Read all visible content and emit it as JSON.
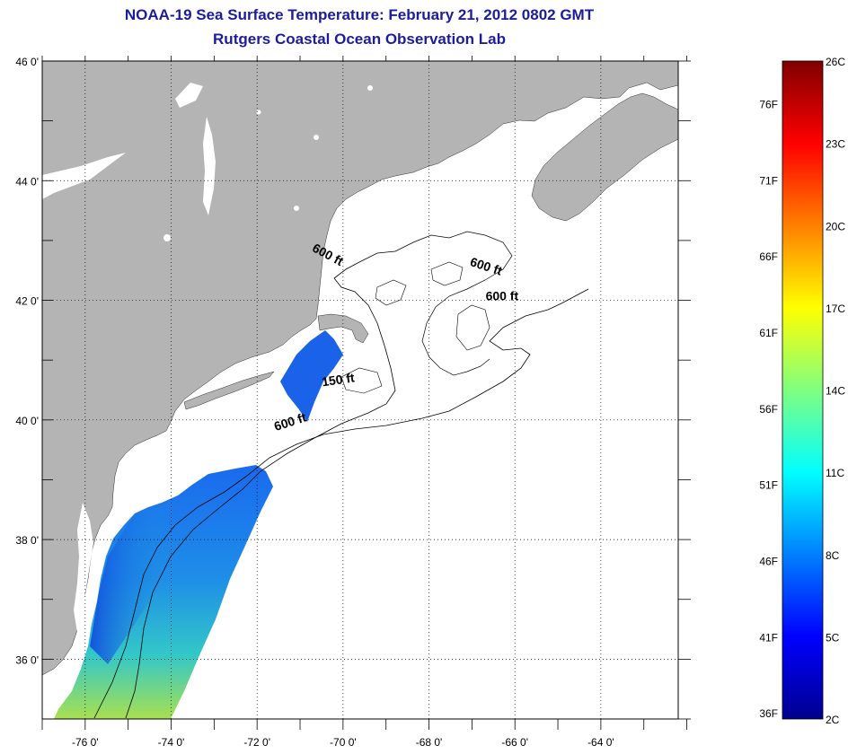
{
  "title": "NOAA-19 Sea Surface Temperature:  February 21, 2012 0802 GMT",
  "subtitle": "Rutgers Coastal Ocean Observation Lab",
  "map": {
    "lon_range": [
      -77,
      -62.2
    ],
    "lat_range": [
      35,
      46
    ],
    "lon_ticks": [
      -76,
      -74,
      -72,
      -70,
      -68,
      -66,
      -64
    ],
    "lat_ticks": [
      36,
      38,
      40,
      42,
      44,
      46
    ],
    "lon_tick_labels": [
      "-76 0'",
      "-74 0'",
      "-72 0'",
      "-70 0'",
      "-68 0'",
      "-66 0'",
      "-64 0'"
    ],
    "lat_tick_labels": [
      "36 0'",
      "38 0'",
      "40 0'",
      "42 0'",
      "44 0'",
      "46 0'"
    ],
    "grid": "dotted",
    "land_color": "#b4b4b4",
    "contour_labels": [
      {
        "text": "600 ft",
        "lon": -70.4,
        "lat": 42.7,
        "rot": 28
      },
      {
        "text": "600 ft",
        "lon": -66.7,
        "lat": 42.5,
        "rot": 18
      },
      {
        "text": "600 ft",
        "lon": -66.3,
        "lat": 42.0,
        "rot": 0
      },
      {
        "text": "150 ft",
        "lon": -70.1,
        "lat": 40.6,
        "rot": -8
      },
      {
        "text": "600 ft",
        "lon": -71.2,
        "lat": 39.9,
        "rot": -18
      }
    ]
  },
  "colorbar": {
    "celsius_labels": [
      "26C",
      "23C",
      "20C",
      "17C",
      "14C",
      "11C",
      "8C",
      "5C",
      "2C"
    ],
    "fahrenheit_labels": [
      "76F",
      "71F",
      "66F",
      "61F",
      "56F",
      "51F",
      "46F",
      "41F",
      "36F"
    ],
    "c_min": 2,
    "c_max": 26,
    "f_values": [
      76,
      71,
      66,
      61,
      56,
      51,
      46,
      41,
      36
    ],
    "colormap": "jet"
  }
}
